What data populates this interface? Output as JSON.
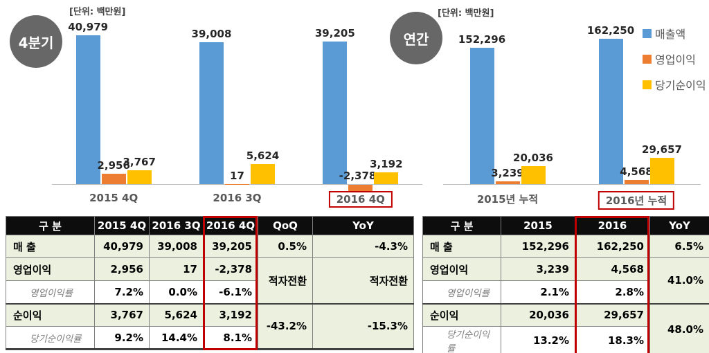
{
  "colors": {
    "revenue_blue": "#5B9BD5",
    "operating_orange": "#ED7D31",
    "net_income_yellow": "#FFC000",
    "highlight_red": "#C00000",
    "badge_gray": "#666766",
    "table_row_green": "#EBF1DE",
    "table_header_black": "#0D0D0D"
  },
  "chart_data": [
    {
      "id": "quarterly",
      "type": "bar",
      "badge": "4분기",
      "unit_label": "[단위: 백만원]",
      "categories": [
        "2015 4Q",
        "2016 3Q",
        "2016 4Q"
      ],
      "highlight_index": 2,
      "legend_position": "none",
      "axis": "hidden",
      "series": [
        {
          "key": "sales",
          "name": "매출액",
          "color": "#5B9BD5",
          "values": [
            40979,
            39008,
            39205
          ]
        },
        {
          "key": "operating-profit",
          "name": "영업이익",
          "color": "#ED7D31",
          "values": [
            2956,
            17,
            -2378
          ]
        },
        {
          "key": "net-income",
          "name": "당기순이익",
          "color": "#FFC000",
          "values": [
            3767,
            5624,
            3192
          ]
        }
      ]
    },
    {
      "id": "annual",
      "type": "bar",
      "badge": "연간",
      "unit_label": "[단위: 백만원]",
      "categories": [
        "2015년 누적",
        "2016년 누적"
      ],
      "highlight_index": 1,
      "legend_position": "right",
      "axis": "hidden",
      "series": [
        {
          "key": "sales",
          "name": "매출액",
          "color": "#5B9BD5",
          "values": [
            152296,
            162250
          ]
        },
        {
          "key": "operating-profit",
          "name": "영업이익",
          "color": "#ED7D31",
          "values": [
            3239,
            4568
          ]
        },
        {
          "key": "net-income",
          "name": "당기순이익",
          "color": "#FFC000",
          "values": [
            20036,
            29657
          ]
        }
      ]
    }
  ],
  "tables": {
    "quarterly": {
      "headers": [
        "구 분",
        "2015 4Q",
        "2016 3Q",
        "2016 4Q",
        "QoQ",
        "YoY"
      ],
      "sales": {
        "label": "매 출",
        "c1": "40,979",
        "c2": "39,008",
        "c3": "39,205",
        "qoq": "0.5%",
        "yoy": "-4.3%"
      },
      "op": {
        "label": "영업이익",
        "c1": "2,956",
        "c2": "17",
        "c3": "-2,378"
      },
      "op_margin": {
        "label": "영업이익률",
        "c1": "7.2%",
        "c2": "0.0%",
        "c3": "-6.1%"
      },
      "op_merged": {
        "qoq": "적자전환",
        "yoy": "적자전환"
      },
      "net": {
        "label": "순이익",
        "c1": "3,767",
        "c2": "5,624",
        "c3": "3,192"
      },
      "net_margin": {
        "label": "당기순이익률",
        "c1": "9.2%",
        "c2": "14.4%",
        "c3": "8.1%"
      },
      "net_merged": {
        "qoq": "-43.2%",
        "yoy": "-15.3%"
      }
    },
    "annual": {
      "headers": [
        "구 분",
        "2015",
        "2016",
        "YoY"
      ],
      "sales": {
        "label": "매 출",
        "c1": "152,296",
        "c2": "162,250",
        "yoy": "6.5%"
      },
      "op": {
        "label": "영업이익",
        "c1": "3,239",
        "c2": "4,568"
      },
      "op_margin": {
        "label": "영업이익률",
        "c1": "2.1%",
        "c2": "2.8%"
      },
      "op_merged": {
        "yoy": "41.0%"
      },
      "net": {
        "label": "순이익",
        "c1": "20,036",
        "c2": "29,657"
      },
      "net_margin": {
        "label": "당기순이익률",
        "c1": "13.2%",
        "c2": "18.3%"
      },
      "net_merged": {
        "yoy": "48.0%"
      }
    }
  }
}
